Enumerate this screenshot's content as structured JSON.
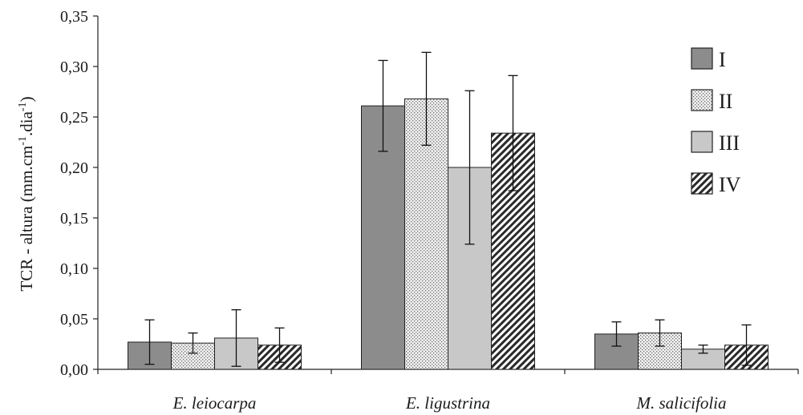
{
  "chart_data": {
    "type": "bar",
    "ylabel": "TCR - altura (mm.cm",
    "ylabel_unit_middle": ".dia",
    "ylabel_unit_close": ")",
    "ylabel_sup1": "-1",
    "ylabel_sup2": "-1",
    "ylim": [
      0,
      0.35
    ],
    "yticks": [
      0,
      0.05,
      0.1,
      0.15,
      0.2,
      0.25,
      0.3,
      0.35
    ],
    "ytick_labels": [
      "0,00",
      "0,05",
      "0,10",
      "0,15",
      "0,20",
      "0,25",
      "0,30",
      "0,35"
    ],
    "categories": [
      "E. leiocarpa",
      "E. ligustrina",
      "M. salicifolia"
    ],
    "legend_position": "top-right",
    "series": [
      {
        "name": "I",
        "values": [
          0.027,
          0.261,
          0.035
        ],
        "errors": [
          0.022,
          0.045,
          0.012
        ],
        "pattern": "solid-dark"
      },
      {
        "name": "II",
        "values": [
          0.026,
          0.268,
          0.036
        ],
        "errors": [
          0.01,
          0.046,
          0.013
        ],
        "pattern": "dotted"
      },
      {
        "name": "III",
        "values": [
          0.031,
          0.2,
          0.02
        ],
        "errors": [
          0.028,
          0.076,
          0.004
        ],
        "pattern": "solid-light"
      },
      {
        "name": "IV",
        "values": [
          0.024,
          0.234,
          0.024
        ],
        "errors": [
          0.017,
          0.057,
          0.02
        ],
        "pattern": "hatched"
      }
    ],
    "colors": {
      "dark": "#8c8c8c",
      "light": "#c8c8c8",
      "dotted_bg": "#f0f0f0",
      "dotted_fg": "#6a6a6a",
      "hatch_bg": "#ffffff",
      "hatch_fg": "#2a2a2a"
    }
  }
}
